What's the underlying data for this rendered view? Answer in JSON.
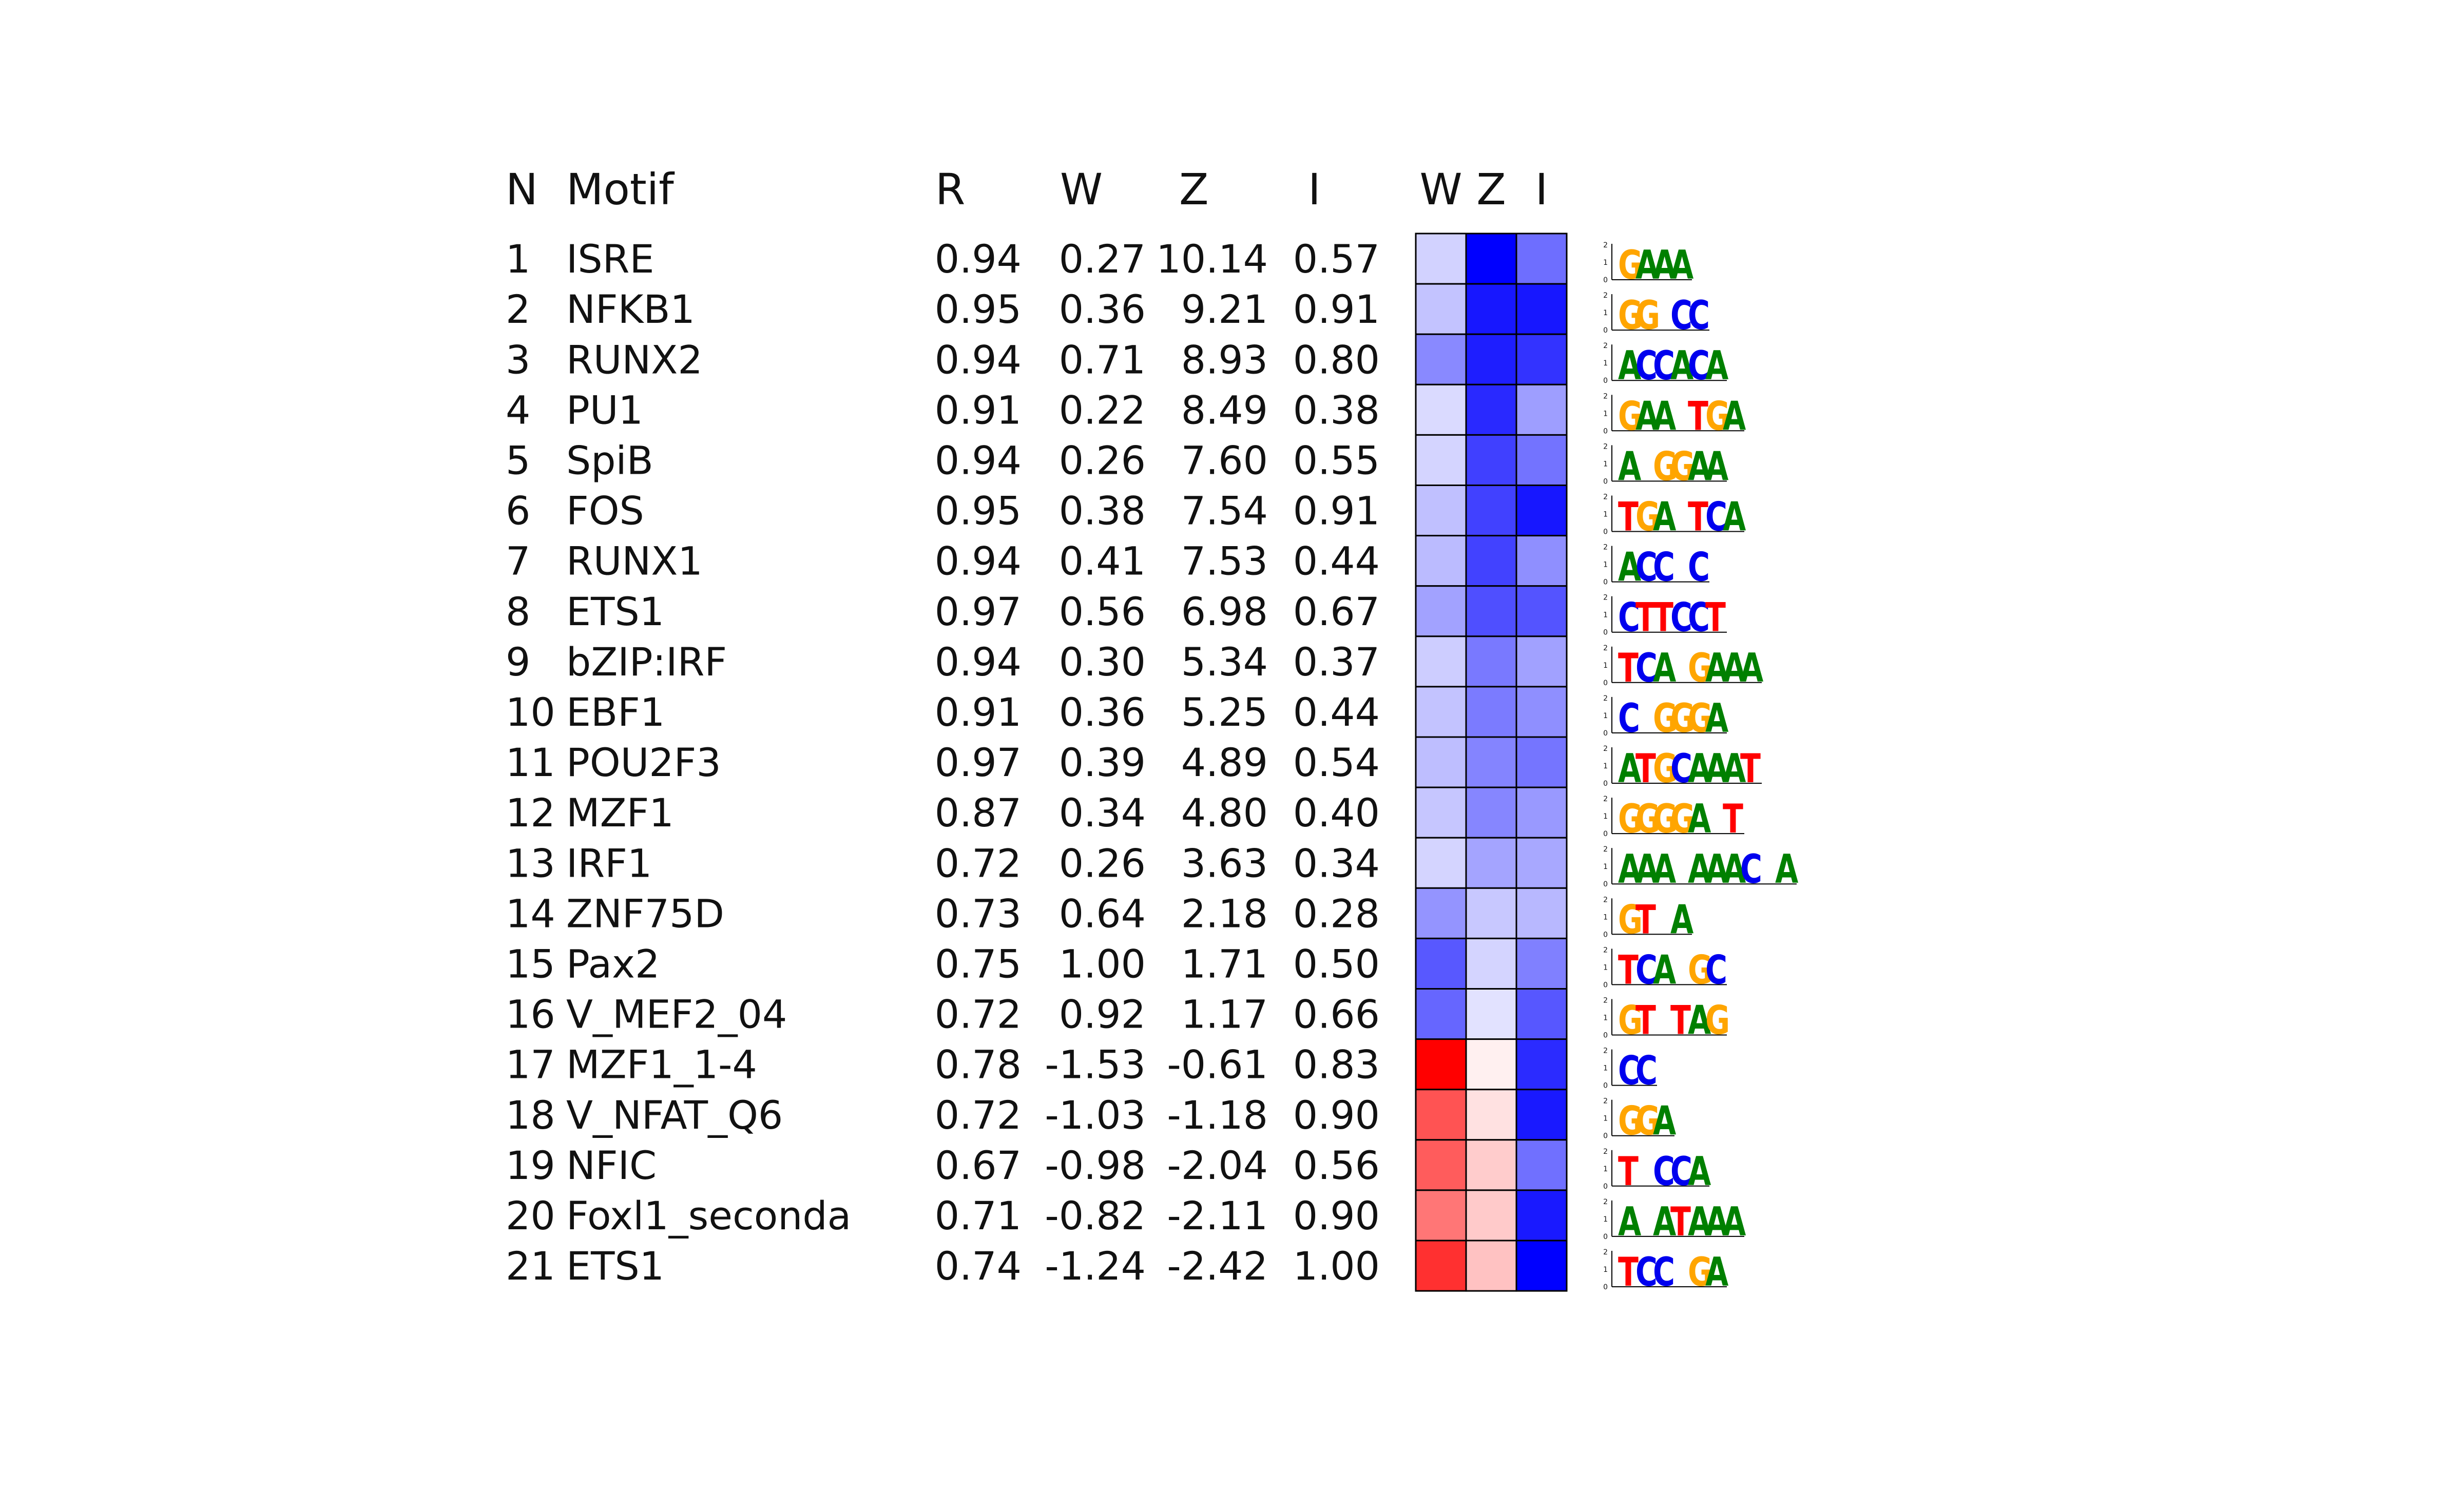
{
  "chart_data": {
    "type": "table",
    "columns": [
      "N",
      "Motif",
      "R",
      "W",
      "Z",
      "I"
    ],
    "heatmap_columns": [
      "W",
      "Z",
      "I"
    ],
    "colormap": {
      "negative": "#ff0000",
      "zero": "#ffffff",
      "positive": "#0000ff"
    },
    "rows": [
      {
        "n": "1",
        "motif": "ISRE",
        "r": "0.94",
        "w": "0.27",
        "z": "10.14",
        "i": "0.57",
        "logo": "GAAA"
      },
      {
        "n": "2",
        "motif": "NFKB1",
        "r": "0.95",
        "w": "0.36",
        "z": "9.21",
        "i": "0.91",
        "logo": "GG CC"
      },
      {
        "n": "3",
        "motif": "RUNX2",
        "r": "0.94",
        "w": "0.71",
        "z": "8.93",
        "i": "0.80",
        "logo": "ACCACA"
      },
      {
        "n": "4",
        "motif": "PU1",
        "r": "0.91",
        "w": "0.22",
        "z": "8.49",
        "i": "0.38",
        "logo": "GAA TGA"
      },
      {
        "n": "5",
        "motif": "SpiB",
        "r": "0.94",
        "w": "0.26",
        "z": "7.60",
        "i": "0.55",
        "logo": "A GGAA"
      },
      {
        "n": "6",
        "motif": "FOS",
        "r": "0.95",
        "w": "0.38",
        "z": "7.54",
        "i": "0.91",
        "logo": "TGA TCA"
      },
      {
        "n": "7",
        "motif": "RUNX1",
        "r": "0.94",
        "w": "0.41",
        "z": "7.53",
        "i": "0.44",
        "logo": "ACC C"
      },
      {
        "n": "8",
        "motif": "ETS1",
        "r": "0.97",
        "w": "0.56",
        "z": "6.98",
        "i": "0.67",
        "logo": "CTTCCT"
      },
      {
        "n": "9",
        "motif": "bZIP:IRF",
        "r": "0.94",
        "w": "0.30",
        "z": "5.34",
        "i": "0.37",
        "logo": "TCA GAAA"
      },
      {
        "n": "10",
        "motif": "EBF1",
        "r": "0.91",
        "w": "0.36",
        "z": "5.25",
        "i": "0.44",
        "logo": "C GGGA"
      },
      {
        "n": "11",
        "motif": "POU2F3",
        "r": "0.97",
        "w": "0.39",
        "z": "4.89",
        "i": "0.54",
        "logo": "ATGCAAAT"
      },
      {
        "n": "12",
        "motif": "MZF1",
        "r": "0.87",
        "w": "0.34",
        "z": "4.80",
        "i": "0.40",
        "logo": "GGGGA T"
      },
      {
        "n": "13",
        "motif": "IRF1",
        "r": "0.72",
        "w": "0.26",
        "z": "3.63",
        "i": "0.34",
        "logo": "AAA AAAC A"
      },
      {
        "n": "14",
        "motif": "ZNF75D",
        "r": "0.73",
        "w": "0.64",
        "z": "2.18",
        "i": "0.28",
        "logo": "GT A"
      },
      {
        "n": "15",
        "motif": "Pax2",
        "r": "0.75",
        "w": "1.00",
        "z": "1.71",
        "i": "0.50",
        "logo": "TCA GC"
      },
      {
        "n": "16",
        "motif": "V_MEF2_04",
        "r": "0.72",
        "w": "0.92",
        "z": "1.17",
        "i": "0.66",
        "logo": "GT TAG"
      },
      {
        "n": "17",
        "motif": "MZF1_1-4",
        "r": "0.78",
        "w": "-1.53",
        "z": "-0.61",
        "i": "0.83",
        "logo": "CC"
      },
      {
        "n": "18",
        "motif": "V_NFAT_Q6",
        "r": "0.72",
        "w": "-1.03",
        "z": "-1.18",
        "i": "0.90",
        "logo": "GGA"
      },
      {
        "n": "19",
        "motif": "NFIC",
        "r": "0.67",
        "w": "-0.98",
        "z": "-2.04",
        "i": "0.56",
        "logo": "T CCA"
      },
      {
        "n": "20",
        "motif": "Foxl1_seconda",
        "r": "0.71",
        "w": "-0.82",
        "z": "-2.11",
        "i": "0.90",
        "logo": "A ATAAA"
      },
      {
        "n": "21",
        "motif": "ETS1",
        "r": "0.74",
        "w": "-1.24",
        "z": "-2.42",
        "i": "1.00",
        "logo": "TCC GA"
      }
    ],
    "heatmap_scale": {
      "W": [
        -1.53,
        1.53
      ],
      "Z": [
        -10.14,
        10.14
      ],
      "I": [
        -1.0,
        1.0
      ]
    },
    "logo_y_ticks": [
      "0",
      "1",
      "2"
    ],
    "logo_colors": {
      "A": "#008000",
      "C": "#0000ee",
      "G": "#ffa500",
      "T": "#ff0000"
    }
  }
}
